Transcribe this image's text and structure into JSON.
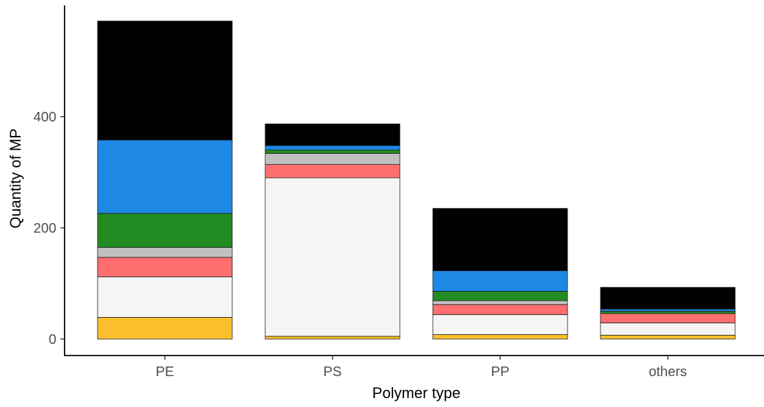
{
  "chart_data": {
    "type": "bar",
    "stacked": true,
    "title": "",
    "xlabel": "Polymer type",
    "ylabel": "Quantity of MP",
    "categories": [
      "PE",
      "PS",
      "PP",
      "others"
    ],
    "ylim": [
      0,
      570
    ],
    "yticks": [
      0,
      200,
      400
    ],
    "grid": false,
    "legend": "none",
    "series": [
      {
        "color": "#FBC02D",
        "values": [
          39,
          5,
          8,
          7
        ]
      },
      {
        "color": "#F5F5F5",
        "values": [
          73,
          285,
          36,
          22
        ]
      },
      {
        "color": "#FF6F6F",
        "values": [
          35,
          24,
          18,
          17
        ]
      },
      {
        "color": "#C0C0C0",
        "values": [
          18,
          20,
          7,
          0
        ]
      },
      {
        "color": "#228B22",
        "values": [
          61,
          6,
          17,
          4
        ]
      },
      {
        "color": "#1E88E5",
        "values": [
          132,
          8,
          37,
          4
        ]
      },
      {
        "color": "#000000",
        "values": [
          214,
          39,
          112,
          39
        ]
      }
    ]
  }
}
